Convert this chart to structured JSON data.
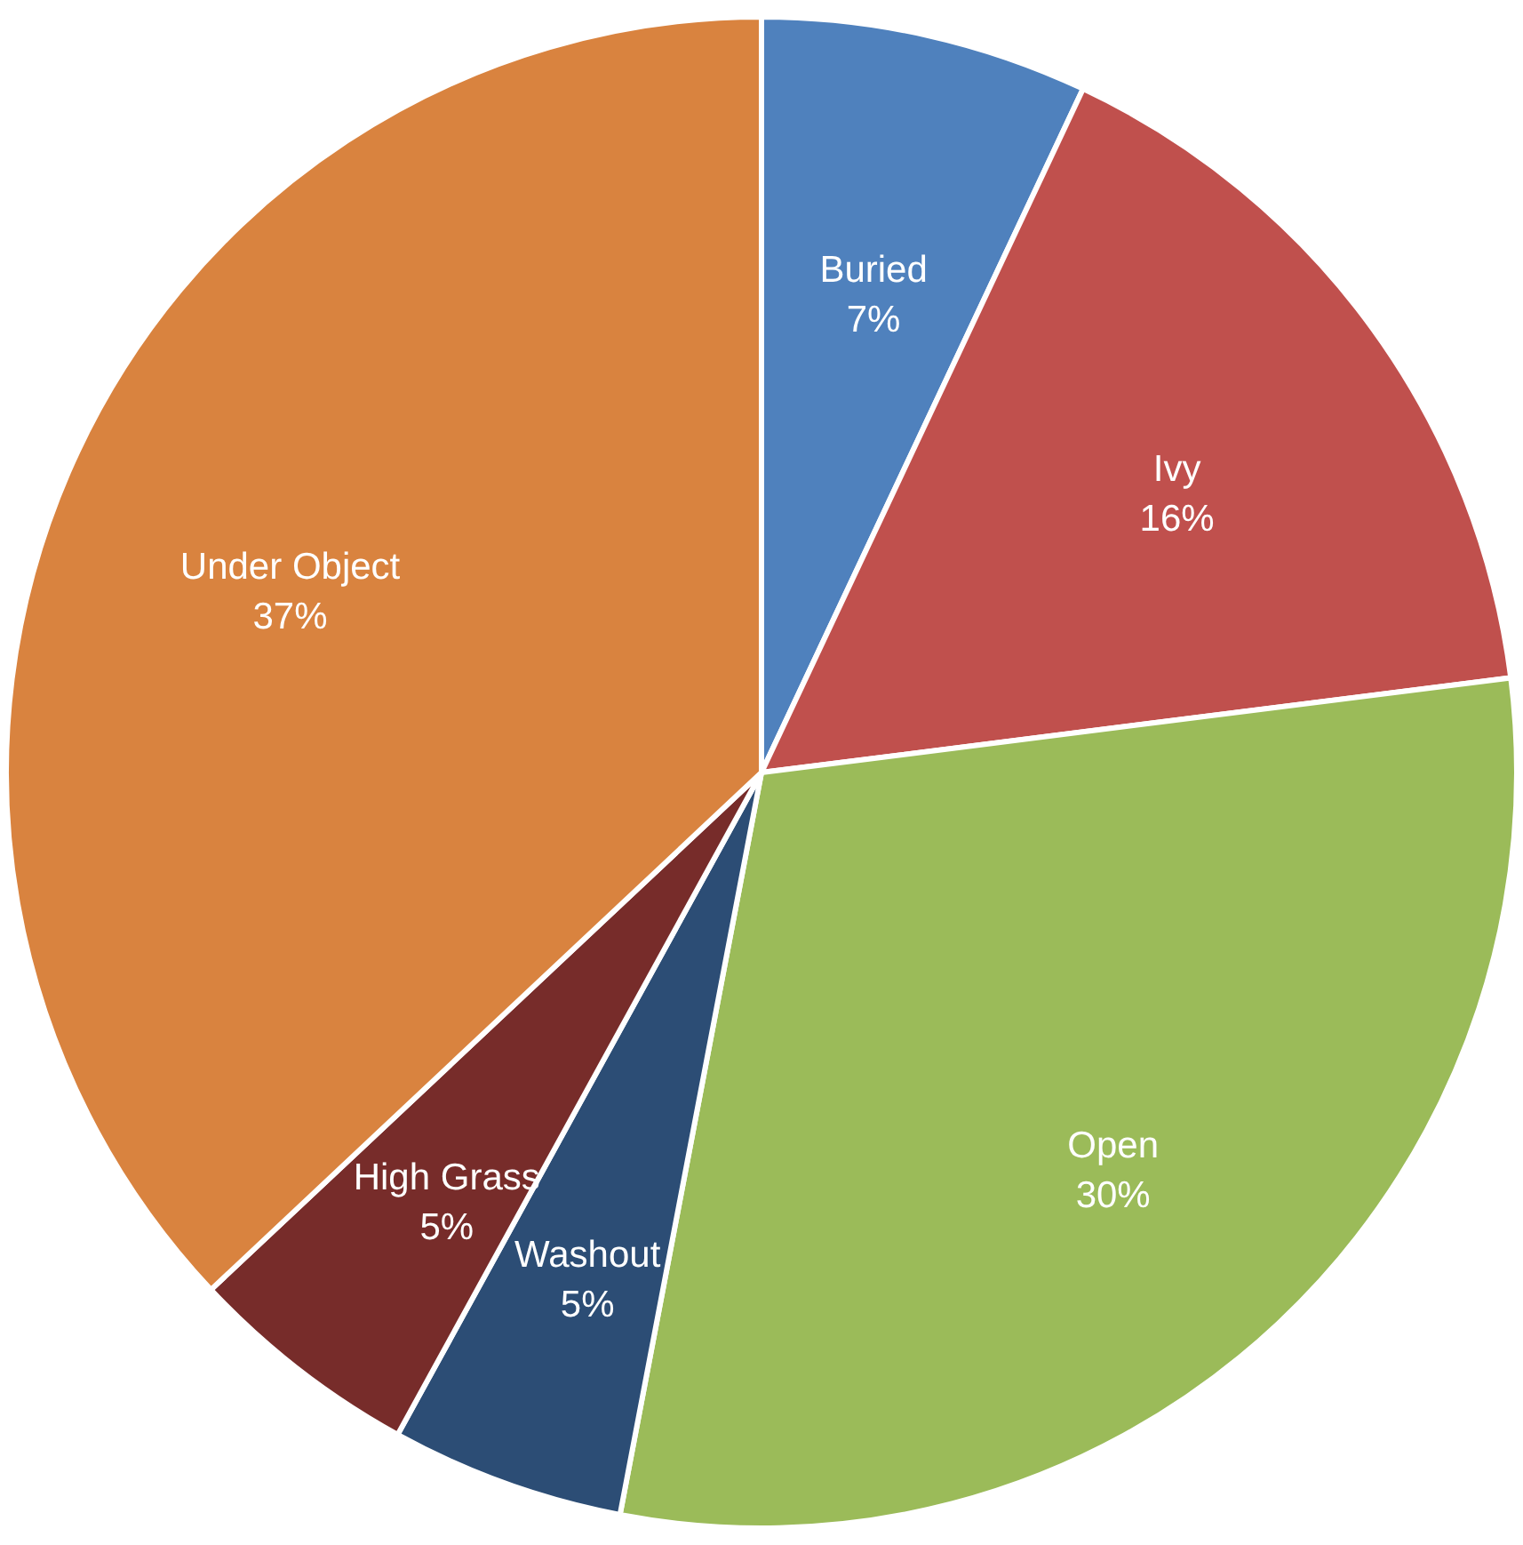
{
  "chart_data": {
    "type": "pie",
    "categories": [
      "Buried",
      "Ivy",
      "Open",
      "Washout",
      "High Grass",
      "Under Object"
    ],
    "values": [
      7,
      16,
      30,
      5,
      5,
      37
    ],
    "value_labels": [
      "7%",
      "16%",
      "30%",
      "5%",
      "5%",
      "37%"
    ],
    "colors": [
      "#4f81bd",
      "#c0504d",
      "#9bbb59",
      "#2c4d75",
      "#772c2a",
      "#d9833f"
    ]
  }
}
